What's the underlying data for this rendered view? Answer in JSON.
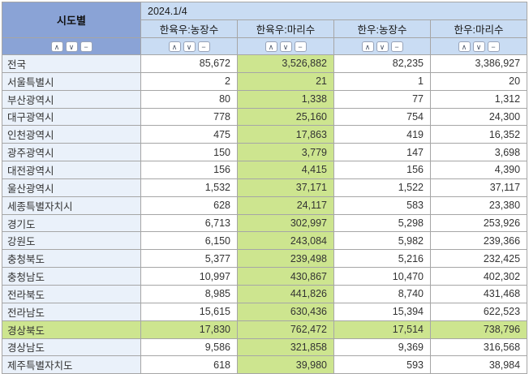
{
  "table": {
    "row_header": "시도별",
    "period": "2024.1/4",
    "columns": [
      {
        "label": "한육우:농장수"
      },
      {
        "label": "한육우:마리수"
      },
      {
        "label": "한우:농장수"
      },
      {
        "label": "한우:마리수"
      }
    ],
    "sort_icons": {
      "up": "∧",
      "down": "∨",
      "remove": "−"
    },
    "highlight": {
      "column_label": "한육우:마리수",
      "row_label": "경상북도"
    },
    "colors": {
      "header_dark_blue": "#8aa3d6",
      "header_light_blue": "#c9dcf3",
      "region_cell_blue": "#eaf1fa",
      "highlight_green": "#cde58f",
      "grid_border": "#a6a6a6"
    },
    "rows": [
      {
        "region": "전국",
        "values": [
          "85,672",
          "3,526,882",
          "82,235",
          "3,386,927"
        ],
        "highlighted": false
      },
      {
        "region": "서울특별시",
        "values": [
          "2",
          "21",
          "1",
          "20"
        ],
        "highlighted": false
      },
      {
        "region": "부산광역시",
        "values": [
          "80",
          "1,338",
          "77",
          "1,312"
        ],
        "highlighted": false
      },
      {
        "region": "대구광역시",
        "values": [
          "778",
          "25,160",
          "754",
          "24,300"
        ],
        "highlighted": false
      },
      {
        "region": "인천광역시",
        "values": [
          "475",
          "17,863",
          "419",
          "16,352"
        ],
        "highlighted": false
      },
      {
        "region": "광주광역시",
        "values": [
          "150",
          "3,779",
          "147",
          "3,698"
        ],
        "highlighted": false
      },
      {
        "region": "대전광역시",
        "values": [
          "156",
          "4,415",
          "156",
          "4,390"
        ],
        "highlighted": false
      },
      {
        "region": "울산광역시",
        "values": [
          "1,532",
          "37,171",
          "1,522",
          "37,117"
        ],
        "highlighted": false
      },
      {
        "region": "세종특별자치시",
        "values": [
          "628",
          "24,117",
          "583",
          "23,380"
        ],
        "highlighted": false
      },
      {
        "region": "경기도",
        "values": [
          "6,713",
          "302,997",
          "5,298",
          "253,926"
        ],
        "highlighted": false
      },
      {
        "region": "강원도",
        "values": [
          "6,150",
          "243,084",
          "5,982",
          "239,366"
        ],
        "highlighted": false
      },
      {
        "region": "충청북도",
        "values": [
          "5,377",
          "239,498",
          "5,216",
          "232,425"
        ],
        "highlighted": false
      },
      {
        "region": "충청남도",
        "values": [
          "10,997",
          "430,867",
          "10,470",
          "402,302"
        ],
        "highlighted": false
      },
      {
        "region": "전라북도",
        "values": [
          "8,985",
          "441,826",
          "8,740",
          "431,468"
        ],
        "highlighted": false
      },
      {
        "region": "전라남도",
        "values": [
          "15,615",
          "630,436",
          "15,394",
          "622,523"
        ],
        "highlighted": false
      },
      {
        "region": "경상북도",
        "values": [
          "17,830",
          "762,472",
          "17,514",
          "738,796"
        ],
        "highlighted": true
      },
      {
        "region": "경상남도",
        "values": [
          "9,586",
          "321,858",
          "9,369",
          "316,568"
        ],
        "highlighted": false
      },
      {
        "region": "제주특별자치도",
        "values": [
          "618",
          "39,980",
          "593",
          "38,984"
        ],
        "highlighted": false
      }
    ]
  }
}
